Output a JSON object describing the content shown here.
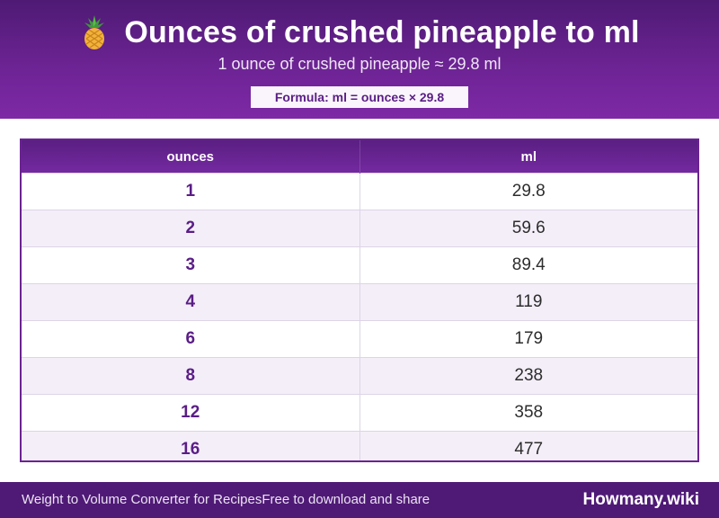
{
  "header": {
    "icon": "pineapple-icon",
    "title": "Ounces of crushed pineapple to ml",
    "subtitle": "1 ounce of crushed pineapple ≈ 29.8 ml",
    "formula": "Formula: ml = ounces × 29.8"
  },
  "table": {
    "columns": [
      "ounces",
      "ml"
    ],
    "rows": [
      [
        "1",
        "29.8"
      ],
      [
        "2",
        "59.6"
      ],
      [
        "3",
        "89.4"
      ],
      [
        "4",
        "119"
      ],
      [
        "6",
        "179"
      ],
      [
        "8",
        "238"
      ],
      [
        "12",
        "358"
      ],
      [
        "16",
        "477"
      ]
    ]
  },
  "footer": {
    "text_left": "Weight to Volume Converter for Recipes",
    "text_middle": "Free to download and share",
    "brand": "Howmany.wiki"
  },
  "colors": {
    "header_purple": "#6c2393",
    "accent_purple": "#5a1d86",
    "row_alt": "#f4eef8",
    "footer_purple": "#4f1a76"
  }
}
